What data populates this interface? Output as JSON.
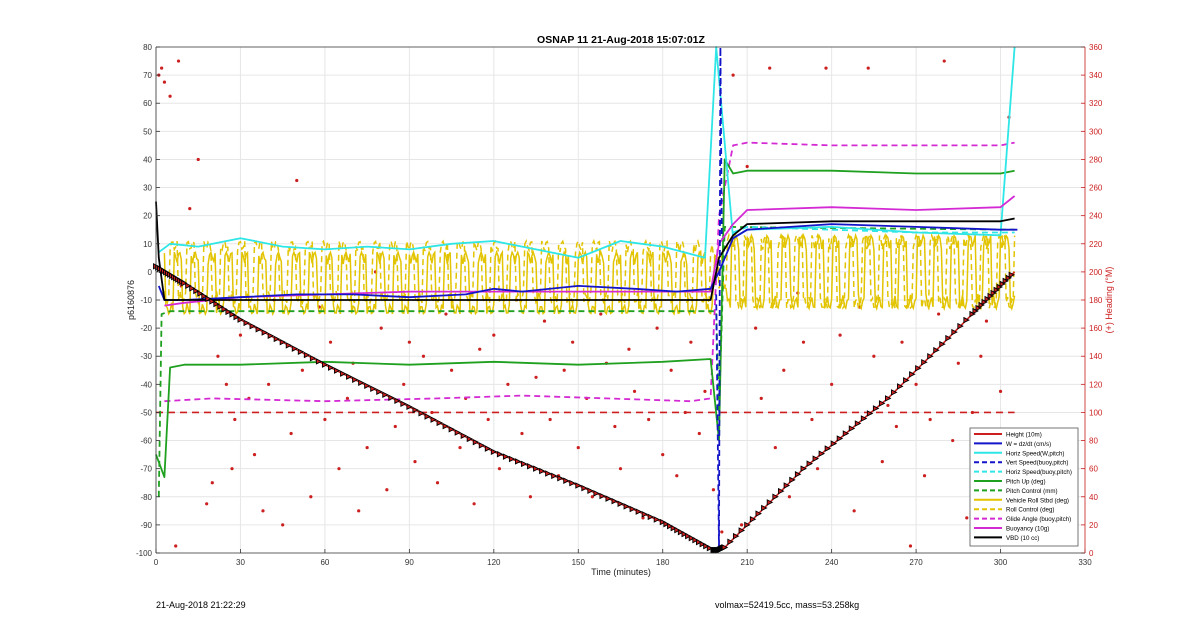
{
  "figure": {
    "title": "OSNAP 11 21-Aug-2018 15:07:01Z",
    "footer_left": "21-Aug-2018 21:22:29",
    "footer_right": "volmax=52419.5cc, mass=53.258kg"
  },
  "chart_data": {
    "type": "line",
    "title": "OSNAP 11 21-Aug-2018 15:07:01Z",
    "xlabel": "Time (minutes)",
    "ylabel": "p6160876",
    "y2label": "(+) Heading (°M)",
    "xlim": [
      0,
      330
    ],
    "ylim": [
      -100,
      80
    ],
    "y2lim": [
      0,
      360
    ],
    "xticks": [
      0,
      30,
      60,
      90,
      120,
      150,
      180,
      210,
      240,
      270,
      300,
      330
    ],
    "yticks": [
      -100,
      -90,
      -80,
      -70,
      -60,
      -50,
      -40,
      -30,
      -20,
      -10,
      0,
      10,
      20,
      30,
      40,
      50,
      60,
      70,
      80
    ],
    "y2ticks": [
      0,
      20,
      40,
      60,
      80,
      100,
      120,
      140,
      160,
      180,
      200,
      220,
      240,
      260,
      280,
      300,
      320,
      340,
      360
    ],
    "grid": true,
    "legend_position": "bottom-right",
    "series": [
      {
        "name": "Height (10m)",
        "color": "#cc1f1f",
        "style": "solid",
        "x": [
          0,
          10,
          30,
          60,
          90,
          120,
          150,
          180,
          198,
          200,
          202,
          230,
          260,
          290,
          305
        ],
        "y": [
          2,
          -4,
          -17,
          -33,
          -48,
          -64,
          -76,
          -89,
          -99,
          -99,
          -98,
          -70,
          -45,
          -15,
          0
        ]
      },
      {
        "name": "W = dz/dt (cm/s)",
        "color": "#1414c8",
        "style": "solid",
        "x": [
          1,
          3,
          10,
          30,
          50,
          70,
          90,
          110,
          120,
          130,
          150,
          170,
          185,
          197,
          200,
          205,
          210,
          240,
          270,
          300,
          306
        ],
        "y": [
          -5,
          -10,
          -10,
          -9,
          -8,
          -8,
          -9,
          -8,
          -6,
          -7,
          -5,
          -6,
          -7,
          -6,
          0,
          12,
          15,
          17,
          16,
          15,
          15
        ]
      },
      {
        "name": "Horiz Speed(W,pitch)",
        "color": "#2ee6e6",
        "style": "solid",
        "x": [
          1,
          5,
          15,
          30,
          45,
          60,
          75,
          90,
          105,
          120,
          135,
          150,
          165,
          180,
          195,
          199,
          205,
          210,
          240,
          270,
          300,
          305
        ],
        "y": [
          7,
          10,
          9,
          12,
          9,
          8,
          9,
          8,
          10,
          11,
          8,
          5,
          11,
          9,
          5,
          80,
          12,
          15,
          16,
          14,
          13,
          80
        ]
      },
      {
        "name": "Vert Speed(buoy,pitch)",
        "color": "#1414c8",
        "style": "dashed",
        "x": [
          199,
          200,
          200.5,
          201
        ],
        "y": [
          -8,
          -99,
          80,
          12
        ]
      },
      {
        "name": "Horiz Speed(buoy,pitch)",
        "color": "#2ee6e6",
        "style": "dashed",
        "x": [
          205,
          210,
          240,
          270,
          300,
          305
        ],
        "y": [
          14,
          16,
          15,
          14,
          14,
          14
        ]
      },
      {
        "name": "Pitch Up (deg)",
        "color": "#1fa01f",
        "style": "solid",
        "x": [
          0,
          3,
          5,
          10,
          30,
          60,
          90,
          120,
          150,
          180,
          197,
          200,
          202,
          205,
          210,
          240,
          270,
          300,
          305
        ],
        "y": [
          -65,
          -73,
          -34,
          -33,
          -33,
          -32,
          -33,
          -32,
          -33,
          -32,
          -31,
          -60,
          40,
          35,
          36,
          36,
          35,
          35,
          36
        ]
      },
      {
        "name": "Pitch Control (mm)",
        "color": "#1fa01f",
        "style": "dashed",
        "x": [
          1,
          2,
          5,
          197,
          199,
          200,
          202,
          305
        ],
        "y": [
          -80,
          -15,
          -14,
          -14,
          -14,
          -50,
          16,
          15
        ]
      },
      {
        "name": "Vehicle Roll Stbd (deg)",
        "color": "#e2c400",
        "style": "solid",
        "x": [
          3,
          198,
          203,
          305
        ],
        "y": [
          -6,
          -2,
          5,
          0
        ]
      },
      {
        "name": "Roll Control (deg)",
        "color": "#e2c400",
        "style": "dashed",
        "x": [
          3,
          198,
          203,
          305
        ],
        "y": [
          0,
          0,
          0,
          0
        ]
      },
      {
        "name": "Glide Angle (buoy,pitch)",
        "color": "#d42ad4",
        "style": "dashed",
        "x": [
          3,
          20,
          60,
          100,
          130,
          160,
          190,
          197,
          200,
          205,
          210,
          240,
          270,
          300,
          305
        ],
        "y": [
          -46,
          -45,
          -46,
          -45,
          -44,
          -45,
          -46,
          -45,
          20,
          45,
          46,
          45,
          45,
          45,
          46
        ]
      },
      {
        "name": "Buoyancy (10g)",
        "color": "#d42ad4",
        "style": "solid",
        "x": [
          3,
          10,
          30,
          60,
          90,
          120,
          150,
          180,
          197,
          200,
          205,
          210,
          240,
          270,
          300,
          305
        ],
        "y": [
          -12,
          -11,
          -9,
          -8,
          -7,
          -7,
          -7,
          -7,
          -7,
          10,
          17,
          22,
          23,
          22,
          23,
          27
        ]
      },
      {
        "name": "VBD (10 cc)",
        "color": "#000000",
        "style": "solid",
        "x": [
          0,
          1,
          3,
          10,
          60,
          120,
          180,
          197,
          200,
          205,
          210,
          240,
          270,
          300,
          305
        ],
        "y": [
          25,
          5,
          -10,
          -10,
          -10,
          -10,
          -10,
          -10,
          5,
          13,
          17,
          18,
          18,
          18,
          19
        ]
      }
    ],
    "reference_line": {
      "y": -50,
      "color": "#cc1f1f",
      "style": "dashed",
      "x": [
        0,
        305
      ]
    },
    "heading_scatter": {
      "axis": "right",
      "color": "#cc1f1f",
      "x": [
        1,
        2,
        3,
        5,
        7,
        8,
        9,
        12,
        15,
        18,
        20,
        22,
        25,
        27,
        28,
        30,
        33,
        35,
        38,
        40,
        42,
        45,
        48,
        50,
        52,
        55,
        58,
        60,
        62,
        65,
        68,
        70,
        72,
        75,
        78,
        80,
        82,
        85,
        88,
        90,
        92,
        95,
        98,
        100,
        103,
        105,
        108,
        110,
        113,
        115,
        118,
        120,
        122,
        125,
        128,
        130,
        133,
        135,
        138,
        140,
        143,
        145,
        148,
        150,
        153,
        155,
        158,
        160,
        163,
        165,
        168,
        170,
        173,
        175,
        178,
        180,
        183,
        185,
        188,
        190,
        193,
        195,
        198,
        201,
        205,
        208,
        210,
        213,
        215,
        218,
        220,
        223,
        225,
        228,
        230,
        233,
        235,
        238,
        240,
        243,
        245,
        248,
        250,
        253,
        255,
        258,
        260,
        263,
        265,
        268,
        270,
        273,
        275,
        278,
        280,
        283,
        285,
        288,
        290,
        293,
        295,
        298,
        300,
        303
      ],
      "y": [
        340,
        345,
        335,
        325,
        5,
        350,
        190,
        245,
        280,
        35,
        50,
        140,
        120,
        60,
        95,
        155,
        110,
        70,
        30,
        120,
        180,
        20,
        85,
        265,
        130,
        40,
        175,
        95,
        150,
        60,
        110,
        135,
        30,
        75,
        200,
        160,
        45,
        90,
        120,
        150,
        65,
        140,
        100,
        50,
        170,
        130,
        75,
        110,
        35,
        145,
        95,
        155,
        60,
        120,
        180,
        85,
        40,
        125,
        165,
        95,
        55,
        130,
        150,
        75,
        110,
        40,
        170,
        135,
        90,
        60,
        145,
        115,
        25,
        95,
        160,
        70,
        130,
        55,
        100,
        150,
        85,
        115,
        45,
        15,
        340,
        20,
        275,
        160,
        110,
        345,
        75,
        130,
        40,
        185,
        150,
        95,
        60,
        345,
        120,
        155,
        85,
        30,
        175,
        345,
        140,
        65,
        105,
        90,
        150,
        5,
        120,
        55,
        95,
        170,
        350,
        80,
        135,
        25,
        100,
        140,
        165,
        75,
        115,
        310
      ]
    }
  }
}
